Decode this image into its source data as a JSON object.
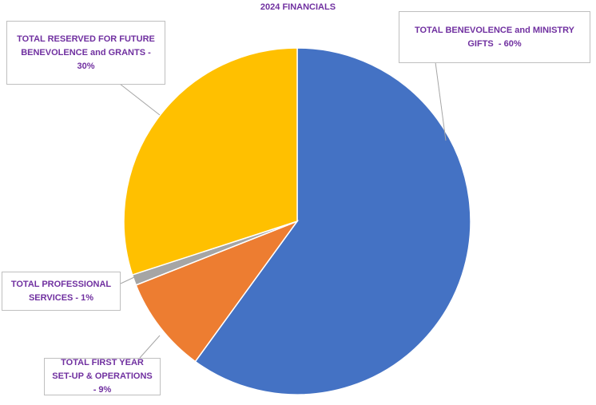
{
  "chart_data": {
    "type": "pie",
    "title": "2024 FINANCIALS",
    "values": [
      60,
      9,
      1,
      30
    ],
    "value_labels": [
      "TOTAL BENEVOLENCE and MINISTRY GIFTS  - 60%",
      "TOTAL FIRST YEAR SET-UP & OPERATIONS - 9%",
      "TOTAL PROFESSIONAL SERVICES - 1%",
      "TOTAL RESERVED FOR FUTURE BENEVOLENCE and GRANTS - 30%"
    ],
    "colors": [
      "#4472c4",
      "#ed7d31",
      "#a5a5a5",
      "#ffc000"
    ]
  }
}
